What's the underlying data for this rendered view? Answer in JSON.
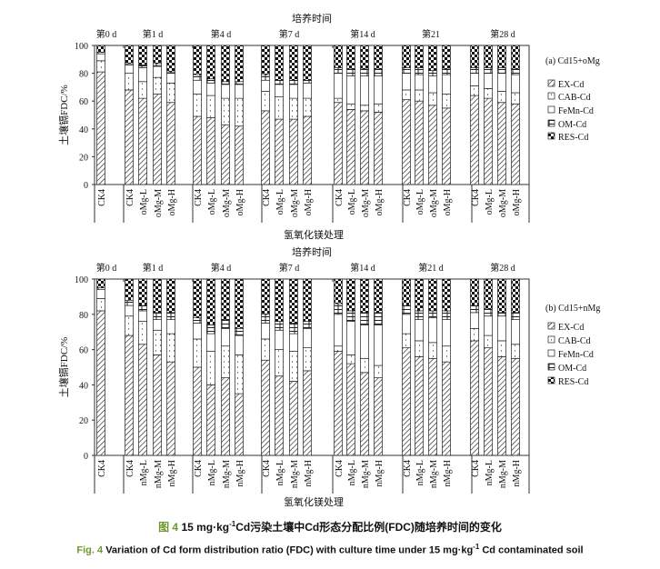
{
  "legend_series": [
    "EX-Cd",
    "CAB-Cd",
    "FeMn-Cd",
    "OM-Cd",
    "RES-Cd"
  ],
  "chart_data": [
    {
      "type": "bar",
      "stacked": true,
      "panel_label": "(a)  Cd15+oMg",
      "title": "培养时间",
      "xlabel": "氢氧化镁处理",
      "ylabel": "土壤镉FDC/%",
      "ylim": [
        0,
        100
      ],
      "yticks": [
        0,
        20,
        40,
        60,
        80,
        100
      ],
      "legend": "right",
      "series": [
        "EX-Cd",
        "CAB-Cd",
        "FeMn-Cd",
        "OM-Cd",
        "RES-Cd"
      ],
      "groups": [
        {
          "label": "第0 d",
          "bars": [
            {
              "label": "CK4",
              "values": [
                81,
                8,
                5,
                1,
                5
              ]
            }
          ]
        },
        {
          "label": "第1 d",
          "bars": [
            {
              "label": "CK4",
              "values": [
                68,
                12,
                6,
                1,
                13
              ]
            },
            {
              "label": "oMg-L",
              "values": [
                62,
                12,
                10,
                2,
                14
              ]
            },
            {
              "label": "oMg-M",
              "values": [
                65,
                12,
                8,
                2,
                13
              ]
            },
            {
              "label": "oMg-H",
              "values": [
                59,
                14,
                7,
                1,
                19
              ]
            }
          ]
        },
        {
          "label": "第4 d",
          "bars": [
            {
              "label": "CK4",
              "values": [
                49,
                16,
                10,
                4,
                21
              ]
            },
            {
              "label": "oMg-L",
              "values": [
                48,
                16,
                9,
                3,
                24
              ]
            },
            {
              "label": "oMg-M",
              "values": [
                43,
                19,
                10,
                2,
                26
              ]
            },
            {
              "label": "oMg-H",
              "values": [
                42,
                20,
                10,
                2,
                26
              ]
            }
          ]
        },
        {
          "label": "第7 d",
          "bars": [
            {
              "label": "CK4",
              "values": [
                53,
                14,
                8,
                4,
                21
              ]
            },
            {
              "label": "oMg-L",
              "values": [
                47,
                16,
                9,
                3,
                25
              ]
            },
            {
              "label": "oMg-M",
              "values": [
                47,
                15,
                10,
                3,
                25
              ]
            },
            {
              "label": "oMg-H",
              "values": [
                49,
                13,
                11,
                2,
                25
              ]
            }
          ]
        },
        {
          "label": "第14 d",
          "bars": [
            {
              "label": "CK4",
              "values": [
                59,
                3,
                18,
                4,
                16
              ]
            },
            {
              "label": "oMg-L",
              "values": [
                54,
                4,
                20,
                5,
                17
              ]
            },
            {
              "label": "oMg-M",
              "values": [
                53,
                4,
                21,
                5,
                17
              ]
            },
            {
              "label": "oMg-H",
              "values": [
                52,
                6,
                20,
                5,
                17
              ]
            }
          ]
        },
        {
          "label": "第21",
          "bars": [
            {
              "label": "CK4",
              "values": [
                61,
                7,
                12,
                4,
                16
              ]
            },
            {
              "label": "oMg-L",
              "values": [
                60,
                8,
                11,
                5,
                16
              ]
            },
            {
              "label": "oMg-M",
              "values": [
                57,
                9,
                12,
                4,
                18
              ]
            },
            {
              "label": "oMg-H",
              "values": [
                55,
                10,
                14,
                4,
                17
              ]
            }
          ]
        },
        {
          "label": "第28 d",
          "bars": [
            {
              "label": "CK4",
              "values": [
                64,
                7,
                9,
                4,
                16
              ]
            },
            {
              "label": "oMg-L",
              "values": [
                62,
                7,
                11,
                4,
                16
              ]
            },
            {
              "label": "oMg-M",
              "values": [
                59,
                8,
                13,
                4,
                16
              ]
            },
            {
              "label": "oMg-H",
              "values": [
                58,
                8,
                13,
                4,
                17
              ]
            }
          ]
        }
      ]
    },
    {
      "type": "bar",
      "stacked": true,
      "panel_label": "(b)  Cd15+nMg",
      "title": "培养时间",
      "xlabel": "氢氧化镁处理",
      "ylabel": "土壤镉FDC/%",
      "ylim": [
        0,
        100
      ],
      "yticks": [
        0,
        20,
        40,
        60,
        80,
        100
      ],
      "legend": "right",
      "series": [
        "EX-Cd",
        "CAB-Cd",
        "FeMn-Cd",
        "OM-Cd",
        "RES-Cd"
      ],
      "groups": [
        {
          "label": "第0 d",
          "bars": [
            {
              "label": "CK4",
              "values": [
                82,
                7,
                5,
                1,
                5
              ]
            }
          ]
        },
        {
          "label": "第1 d",
          "bars": [
            {
              "label": "CK4",
              "values": [
                68,
                11,
                6,
                3,
                12
              ]
            },
            {
              "label": "nMg-L",
              "values": [
                63,
                13,
                6,
                3,
                15
              ]
            },
            {
              "label": "nMg-M",
              "values": [
                57,
                14,
                6,
                4,
                19
              ]
            },
            {
              "label": "nMg-H",
              "values": [
                53,
                16,
                8,
                4,
                19
              ]
            }
          ]
        },
        {
          "label": "第4 d",
          "bars": [
            {
              "label": "CK4",
              "values": [
                50,
                16,
                9,
                3,
                22
              ]
            },
            {
              "label": "nMg-L",
              "values": [
                40,
                19,
                10,
                5,
                26
              ]
            },
            {
              "label": "nMg-M",
              "values": [
                44,
                18,
                10,
                5,
                23
              ]
            },
            {
              "label": "nMg-H",
              "values": [
                35,
                22,
                11,
                4,
                28
              ]
            }
          ]
        },
        {
          "label": "第7 d",
          "bars": [
            {
              "label": "CK4",
              "values": [
                54,
                12,
                9,
                5,
                20
              ]
            },
            {
              "label": "nMg-L",
              "values": [
                45,
                15,
                11,
                5,
                24
              ]
            },
            {
              "label": "nMg-M",
              "values": [
                42,
                17,
                10,
                6,
                25
              ]
            },
            {
              "label": "nMg-H",
              "values": [
                48,
                13,
                11,
                4,
                24
              ]
            }
          ]
        },
        {
          "label": "第14 d",
          "bars": [
            {
              "label": "CK4",
              "values": [
                59,
                3,
                18,
                6,
                14
              ]
            },
            {
              "label": "nMg-L",
              "values": [
                52,
                5,
                19,
                6,
                18
              ]
            },
            {
              "label": "nMg-M",
              "values": [
                47,
                8,
                19,
                7,
                19
              ]
            },
            {
              "label": "nMg-H",
              "values": [
                44,
                7,
                23,
                7,
                19
              ]
            }
          ]
        },
        {
          "label": "第21 d",
          "bars": [
            {
              "label": "CK4",
              "values": [
                61,
                8,
                11,
                5,
                15
              ]
            },
            {
              "label": "nMg-L",
              "values": [
                56,
                9,
                12,
                5,
                18
              ]
            },
            {
              "label": "nMg-M",
              "values": [
                55,
                9,
                14,
                4,
                18
              ]
            },
            {
              "label": "nMg-H",
              "values": [
                53,
                9,
                15,
                5,
                18
              ]
            }
          ]
        },
        {
          "label": "第28 d",
          "bars": [
            {
              "label": "CK4",
              "values": [
                65,
                7,
                9,
                4,
                15
              ]
            },
            {
              "label": "nMg-L",
              "values": [
                61,
                7,
                11,
                4,
                17
              ]
            },
            {
              "label": "nMg-M",
              "values": [
                56,
                9,
                14,
                2,
                19
              ]
            },
            {
              "label": "nMg-H",
              "values": [
                55,
                8,
                14,
                4,
                19
              ]
            }
          ]
        }
      ]
    }
  ],
  "caption": {
    "cn_fig": "图 4",
    "cn_a": " 15 mg·kg",
    "cn_sup": "-1",
    "cn_b": "Cd污染土壤中Cd形态分配比例(FDC)随培养时间的变化",
    "en_fig": "Fig. 4",
    "en_a": " Variation of Cd form distribution ratio (FDC) with culture time under 15 mg·kg",
    "en_sup": "-1",
    "en_b": " Cd contaminated soil",
    "fig_color": "#6c9a2e"
  }
}
